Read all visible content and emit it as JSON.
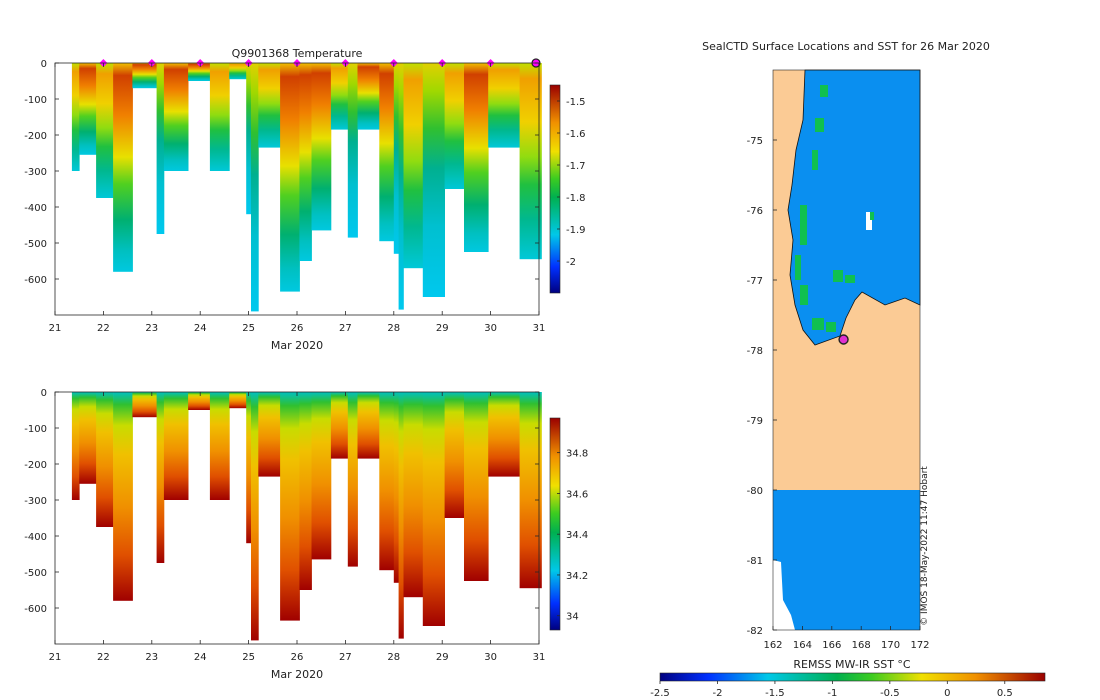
{
  "chart_data": [
    {
      "type": "heatmap",
      "title": "Q9901368  Temperature",
      "xlabel": "Mar 2020",
      "ylabel": "",
      "xlim": [
        21,
        31
      ],
      "ylim": [
        -700,
        0
      ],
      "xticks": [
        "21",
        "22",
        "23",
        "24",
        "25",
        "26",
        "27",
        "28",
        "29",
        "30",
        "31"
      ],
      "yticks": [
        "0",
        "-100",
        "-200",
        "-300",
        "-400",
        "-500",
        "-600"
      ],
      "colorbar": {
        "min": -2.1,
        "max": -1.45,
        "ticks": [
          "-1.5",
          "-1.6",
          "-1.7",
          "-1.8",
          "-1.9",
          "-2"
        ]
      },
      "surface_markers_days": [
        22,
        23,
        24,
        25,
        26,
        27,
        28,
        29,
        30
      ],
      "latest_marker_day": 31,
      "profiles": [
        {
          "x0": 21.35,
          "x1": 21.5,
          "depth": 300,
          "pattern": "warmTop"
        },
        {
          "x0": 21.5,
          "x1": 21.85,
          "depth": 255,
          "pattern": "hotCore"
        },
        {
          "x0": 21.85,
          "x1": 22.2,
          "depth": 375,
          "pattern": "warmTop"
        },
        {
          "x0": 22.2,
          "x1": 22.6,
          "depth": 580,
          "pattern": "hotCore"
        },
        {
          "x0": 22.6,
          "x1": 23.1,
          "depth": 70,
          "pattern": "hotCore"
        },
        {
          "x0": 23.1,
          "x1": 23.25,
          "depth": 475,
          "pattern": "coldDeep"
        },
        {
          "x0": 23.25,
          "x1": 23.75,
          "depth": 300,
          "pattern": "hotCore"
        },
        {
          "x0": 23.75,
          "x1": 24.2,
          "depth": 50,
          "pattern": "hotCore"
        },
        {
          "x0": 24.2,
          "x1": 24.6,
          "depth": 300,
          "pattern": "warmTop"
        },
        {
          "x0": 24.6,
          "x1": 24.95,
          "depth": 45,
          "pattern": "warmTop"
        },
        {
          "x0": 24.95,
          "x1": 25.05,
          "depth": 420,
          "pattern": "coldDeep"
        },
        {
          "x0": 25.05,
          "x1": 25.2,
          "depth": 690,
          "pattern": "coldDeep"
        },
        {
          "x0": 25.2,
          "x1": 25.65,
          "depth": 235,
          "pattern": "warmTop"
        },
        {
          "x0": 25.65,
          "x1": 26.05,
          "depth": 635,
          "pattern": "hotCore"
        },
        {
          "x0": 26.05,
          "x1": 26.3,
          "depth": 550,
          "pattern": "hotCore"
        },
        {
          "x0": 26.3,
          "x1": 26.7,
          "depth": 465,
          "pattern": "hotCore"
        },
        {
          "x0": 26.7,
          "x1": 27.05,
          "depth": 185,
          "pattern": "warmTop"
        },
        {
          "x0": 27.05,
          "x1": 27.25,
          "depth": 485,
          "pattern": "coldDeep"
        },
        {
          "x0": 27.25,
          "x1": 27.7,
          "depth": 185,
          "pattern": "hotCore"
        },
        {
          "x0": 27.7,
          "x1": 28.0,
          "depth": 495,
          "pattern": "hotCore"
        },
        {
          "x0": 28.0,
          "x1": 28.1,
          "depth": 530,
          "pattern": "coldDeep"
        },
        {
          "x0": 28.1,
          "x1": 28.2,
          "depth": 685,
          "pattern": "coldDeep"
        },
        {
          "x0": 28.2,
          "x1": 28.6,
          "depth": 570,
          "pattern": "warmTop"
        },
        {
          "x0": 28.6,
          "x1": 29.05,
          "depth": 650,
          "pattern": "coldDeep"
        },
        {
          "x0": 29.05,
          "x1": 29.45,
          "depth": 350,
          "pattern": "warmTop"
        },
        {
          "x0": 29.45,
          "x1": 29.95,
          "depth": 525,
          "pattern": "hotCore"
        },
        {
          "x0": 29.95,
          "x1": 30.6,
          "depth": 235,
          "pattern": "warmTop"
        },
        {
          "x0": 30.6,
          "x1": 31.05,
          "depth": 545,
          "pattern": "warmTop"
        }
      ]
    },
    {
      "type": "heatmap",
      "title": "",
      "xlabel": "Mar 2020",
      "ylabel": "",
      "xlim": [
        21,
        31
      ],
      "ylim": [
        -700,
        0
      ],
      "xticks": [
        "21",
        "22",
        "23",
        "24",
        "25",
        "26",
        "27",
        "28",
        "29",
        "30",
        "31"
      ],
      "yticks": [
        "0",
        "-100",
        "-200",
        "-300",
        "-400",
        "-500",
        "-600"
      ],
      "colorbar": {
        "min": 33.93,
        "max": 34.97,
        "ticks": [
          "34.8",
          "34.6",
          "34.4",
          "34.2",
          "34"
        ]
      }
    },
    {
      "type": "heatmap",
      "title": "SealCTD Surface Locations and SST for 26 Mar 2020",
      "xlabel": "",
      "xlim": [
        162,
        172
      ],
      "ylim": [
        -82,
        -74
      ],
      "xticks": [
        "162",
        "164",
        "166",
        "168",
        "170",
        "172"
      ],
      "yticks": [
        "-75",
        "-76",
        "-77",
        "-78",
        "-79",
        "-80",
        "-81",
        "-82"
      ],
      "colorbar_label": "REMSS MW-IR SST °C",
      "colorbar": {
        "min": -2.5,
        "max": 0.85,
        "ticks": [
          "-2.5",
          "-2",
          "-1.5",
          "-1",
          "-0.5",
          "0",
          "0.5"
        ]
      },
      "sst_value": -1.8,
      "land_color": "#fbcb95",
      "marker": {
        "lon": 166.8,
        "lat": -77.85
      },
      "credit": "© IMOS 18-May-2022 11:47 Hobart"
    }
  ]
}
